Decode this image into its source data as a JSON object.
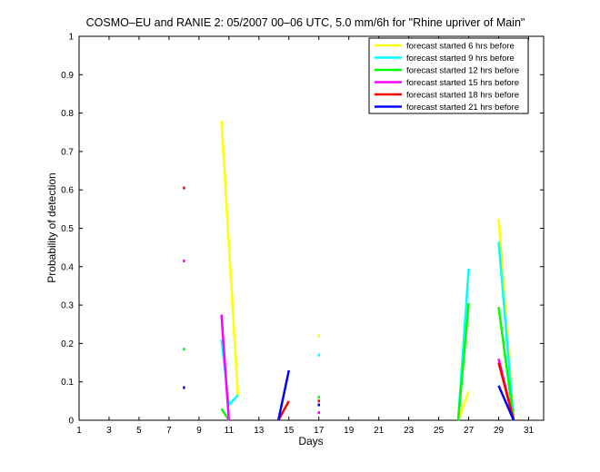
{
  "chart_data": {
    "type": "line",
    "title": "COSMO–EU and RANIE 2: 05/2007 00–06 UTC, 5.0 mm/6h for \"Rhine upriver of Main\"",
    "xlabel": "Days",
    "ylabel": "Probability of detection",
    "xlim": [
      1,
      32
    ],
    "ylim": [
      0,
      1
    ],
    "xticks": [
      1,
      3,
      5,
      7,
      9,
      11,
      13,
      15,
      17,
      19,
      21,
      23,
      25,
      27,
      29,
      31
    ],
    "yticks": [
      0,
      0.1,
      0.2,
      0.3,
      0.4,
      0.5,
      0.6,
      0.7,
      0.8,
      0.9,
      1
    ],
    "grid": false,
    "legend_position": "top-right",
    "series": [
      {
        "name": "forecast started 6 hrs before",
        "color": "#ffff00",
        "segments": [
          [
            [
              10.5,
              0.78
            ],
            [
              11.6,
              0.065
            ]
          ],
          [
            [
              26.3,
              0.0
            ],
            [
              27.0,
              0.075
            ]
          ],
          [
            [
              29.0,
              0.525
            ],
            [
              30.0,
              0.0
            ]
          ]
        ],
        "points": [
          [
            17.0,
            0.22
          ]
        ]
      },
      {
        "name": "forecast started 9 hrs before",
        "color": "#00ffff",
        "segments": [
          [
            [
              10.5,
              0.21
            ],
            [
              11.0,
              0.04
            ],
            [
              11.6,
              0.065
            ]
          ],
          [
            [
              26.3,
              0.0
            ],
            [
              27.0,
              0.395
            ]
          ],
          [
            [
              29.0,
              0.465
            ],
            [
              30.0,
              0.0
            ]
          ]
        ],
        "points": [
          [
            17.0,
            0.17
          ]
        ]
      },
      {
        "name": "forecast started 12 hrs before",
        "color": "#00ff00",
        "segments": [
          [
            [
              10.5,
              0.03
            ],
            [
              11.0,
              0.0
            ]
          ],
          [
            [
              26.3,
              0.0
            ],
            [
              27.0,
              0.305
            ]
          ],
          [
            [
              29.0,
              0.295
            ],
            [
              30.0,
              0.0
            ]
          ]
        ],
        "points": [
          [
            8.0,
            0.185
          ],
          [
            17.0,
            0.06
          ]
        ]
      },
      {
        "name": "forecast started 15 hrs before",
        "color": "#ff00ff",
        "segments": [
          [
            [
              10.5,
              0.275
            ],
            [
              11.0,
              0.0
            ]
          ],
          [
            [
              29.0,
              0.16
            ],
            [
              30.0,
              0.0
            ]
          ]
        ],
        "points": [
          [
            8.0,
            0.415
          ],
          [
            17.0,
            0.02
          ]
        ]
      },
      {
        "name": "forecast started 18 hrs before",
        "color": "#ff0000",
        "segments": [
          [
            [
              14.3,
              0.0
            ],
            [
              15.0,
              0.05
            ]
          ],
          [
            [
              29.0,
              0.15
            ],
            [
              30.0,
              0.0
            ]
          ]
        ],
        "points": [
          [
            8.0,
            0.605
          ],
          [
            17.0,
            0.05
          ]
        ]
      },
      {
        "name": "forecast started 21 hrs before",
        "color": "#0000ff",
        "segments": [
          [
            [
              14.3,
              0.0
            ],
            [
              15.0,
              0.13
            ]
          ],
          [
            [
              29.0,
              0.09
            ],
            [
              30.0,
              0.0
            ]
          ]
        ],
        "points": [
          [
            8.0,
            0.085
          ],
          [
            17.0,
            0.04
          ]
        ]
      }
    ]
  }
}
